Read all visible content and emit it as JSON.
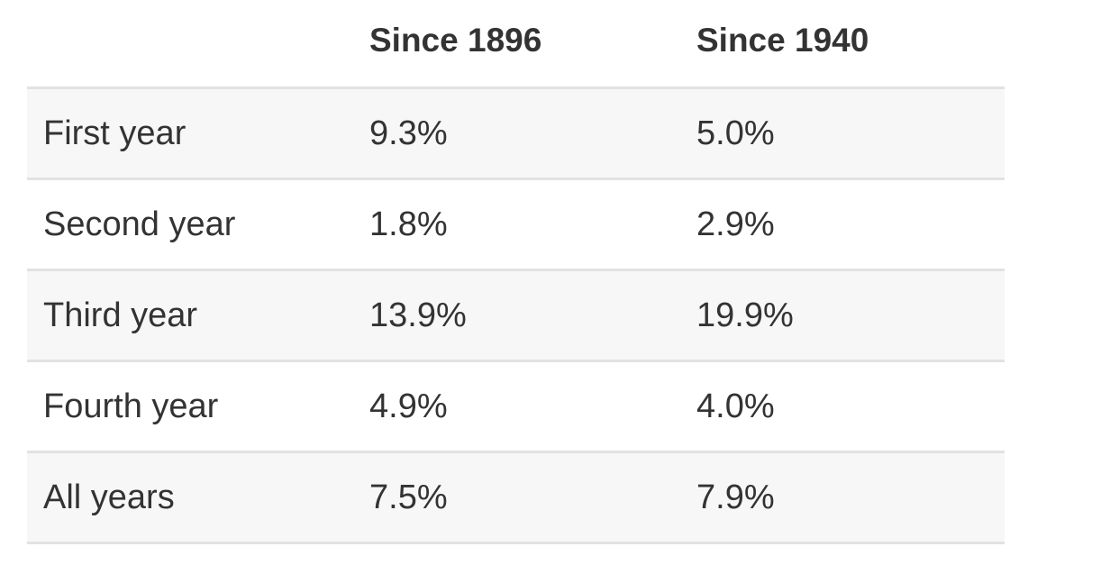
{
  "table": {
    "headers": [
      "",
      "Since 1896",
      "Since 1940"
    ],
    "rows": [
      [
        "First year",
        "9.3%",
        "5.0%"
      ],
      [
        "Second year",
        "1.8%",
        "2.9%"
      ],
      [
        "Third year",
        "13.9%",
        "19.9%"
      ],
      [
        "Fourth year",
        "4.9%",
        "4.0%"
      ],
      [
        "All years",
        "7.5%",
        "7.9%"
      ]
    ]
  }
}
